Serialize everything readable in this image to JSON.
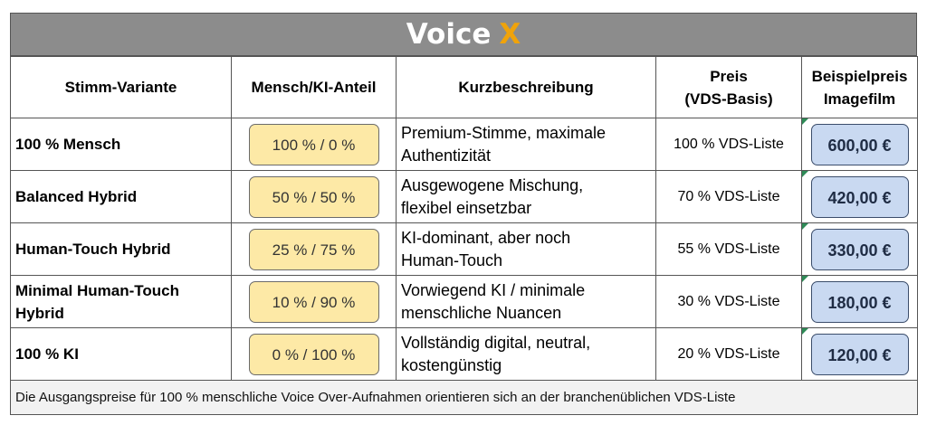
{
  "title": {
    "main": "Voice",
    "accent": "X"
  },
  "colors": {
    "title_bg": "#8c8c8c",
    "accent": "#f0a30a",
    "ratio_fill": "#fde9a6",
    "price_fill": "#c9d9f1"
  },
  "headers": {
    "variant": "Stimm-Variante",
    "ratio": "Mensch/KI-Anteil",
    "description": "Kurzbeschreibung",
    "price_line1": "Preis",
    "price_line2": "(VDS-Basis)",
    "example_line1": "Beispielpreis",
    "example_line2": "Imagefilm"
  },
  "rows": [
    {
      "name": "100 % Mensch",
      "ratio": "100 % / 0 %",
      "desc1": "Premium-Stimme, maximale",
      "desc2": "Authentizität",
      "price": "100 % VDS-Liste",
      "example": "600,00 €"
    },
    {
      "name": "Balanced Hybrid",
      "ratio": "50 % / 50 %",
      "desc1": "Ausgewogene Mischung,",
      "desc2": "flexibel einsetzbar",
      "price": "70 % VDS-Liste",
      "example": "420,00 €"
    },
    {
      "name": "Human-Touch Hybrid",
      "ratio": "25 % / 75 %",
      "desc1": "KI-dominant, aber noch",
      "desc2": "Human-Touch",
      "price": "55 % VDS-Liste",
      "example": "330,00 €"
    },
    {
      "name": "Minimal Human-Touch Hybrid",
      "ratio": "10 % / 90 %",
      "desc1": "Vorwiegend KI / minimale",
      "desc2": "menschliche Nuancen",
      "price": "30 % VDS-Liste",
      "example": "180,00 €"
    },
    {
      "name": "100 % KI",
      "ratio": "0 % / 100 %",
      "desc1": "Vollständig digital, neutral,",
      "desc2": "kostengünstig",
      "price": "20 % VDS-Liste",
      "example": "120,00 €"
    }
  ],
  "footer": "Die Ausgangspreise für 100 % menschliche Voice Over-Aufnahmen orientieren sich an der branchenüblichen VDS-Liste"
}
